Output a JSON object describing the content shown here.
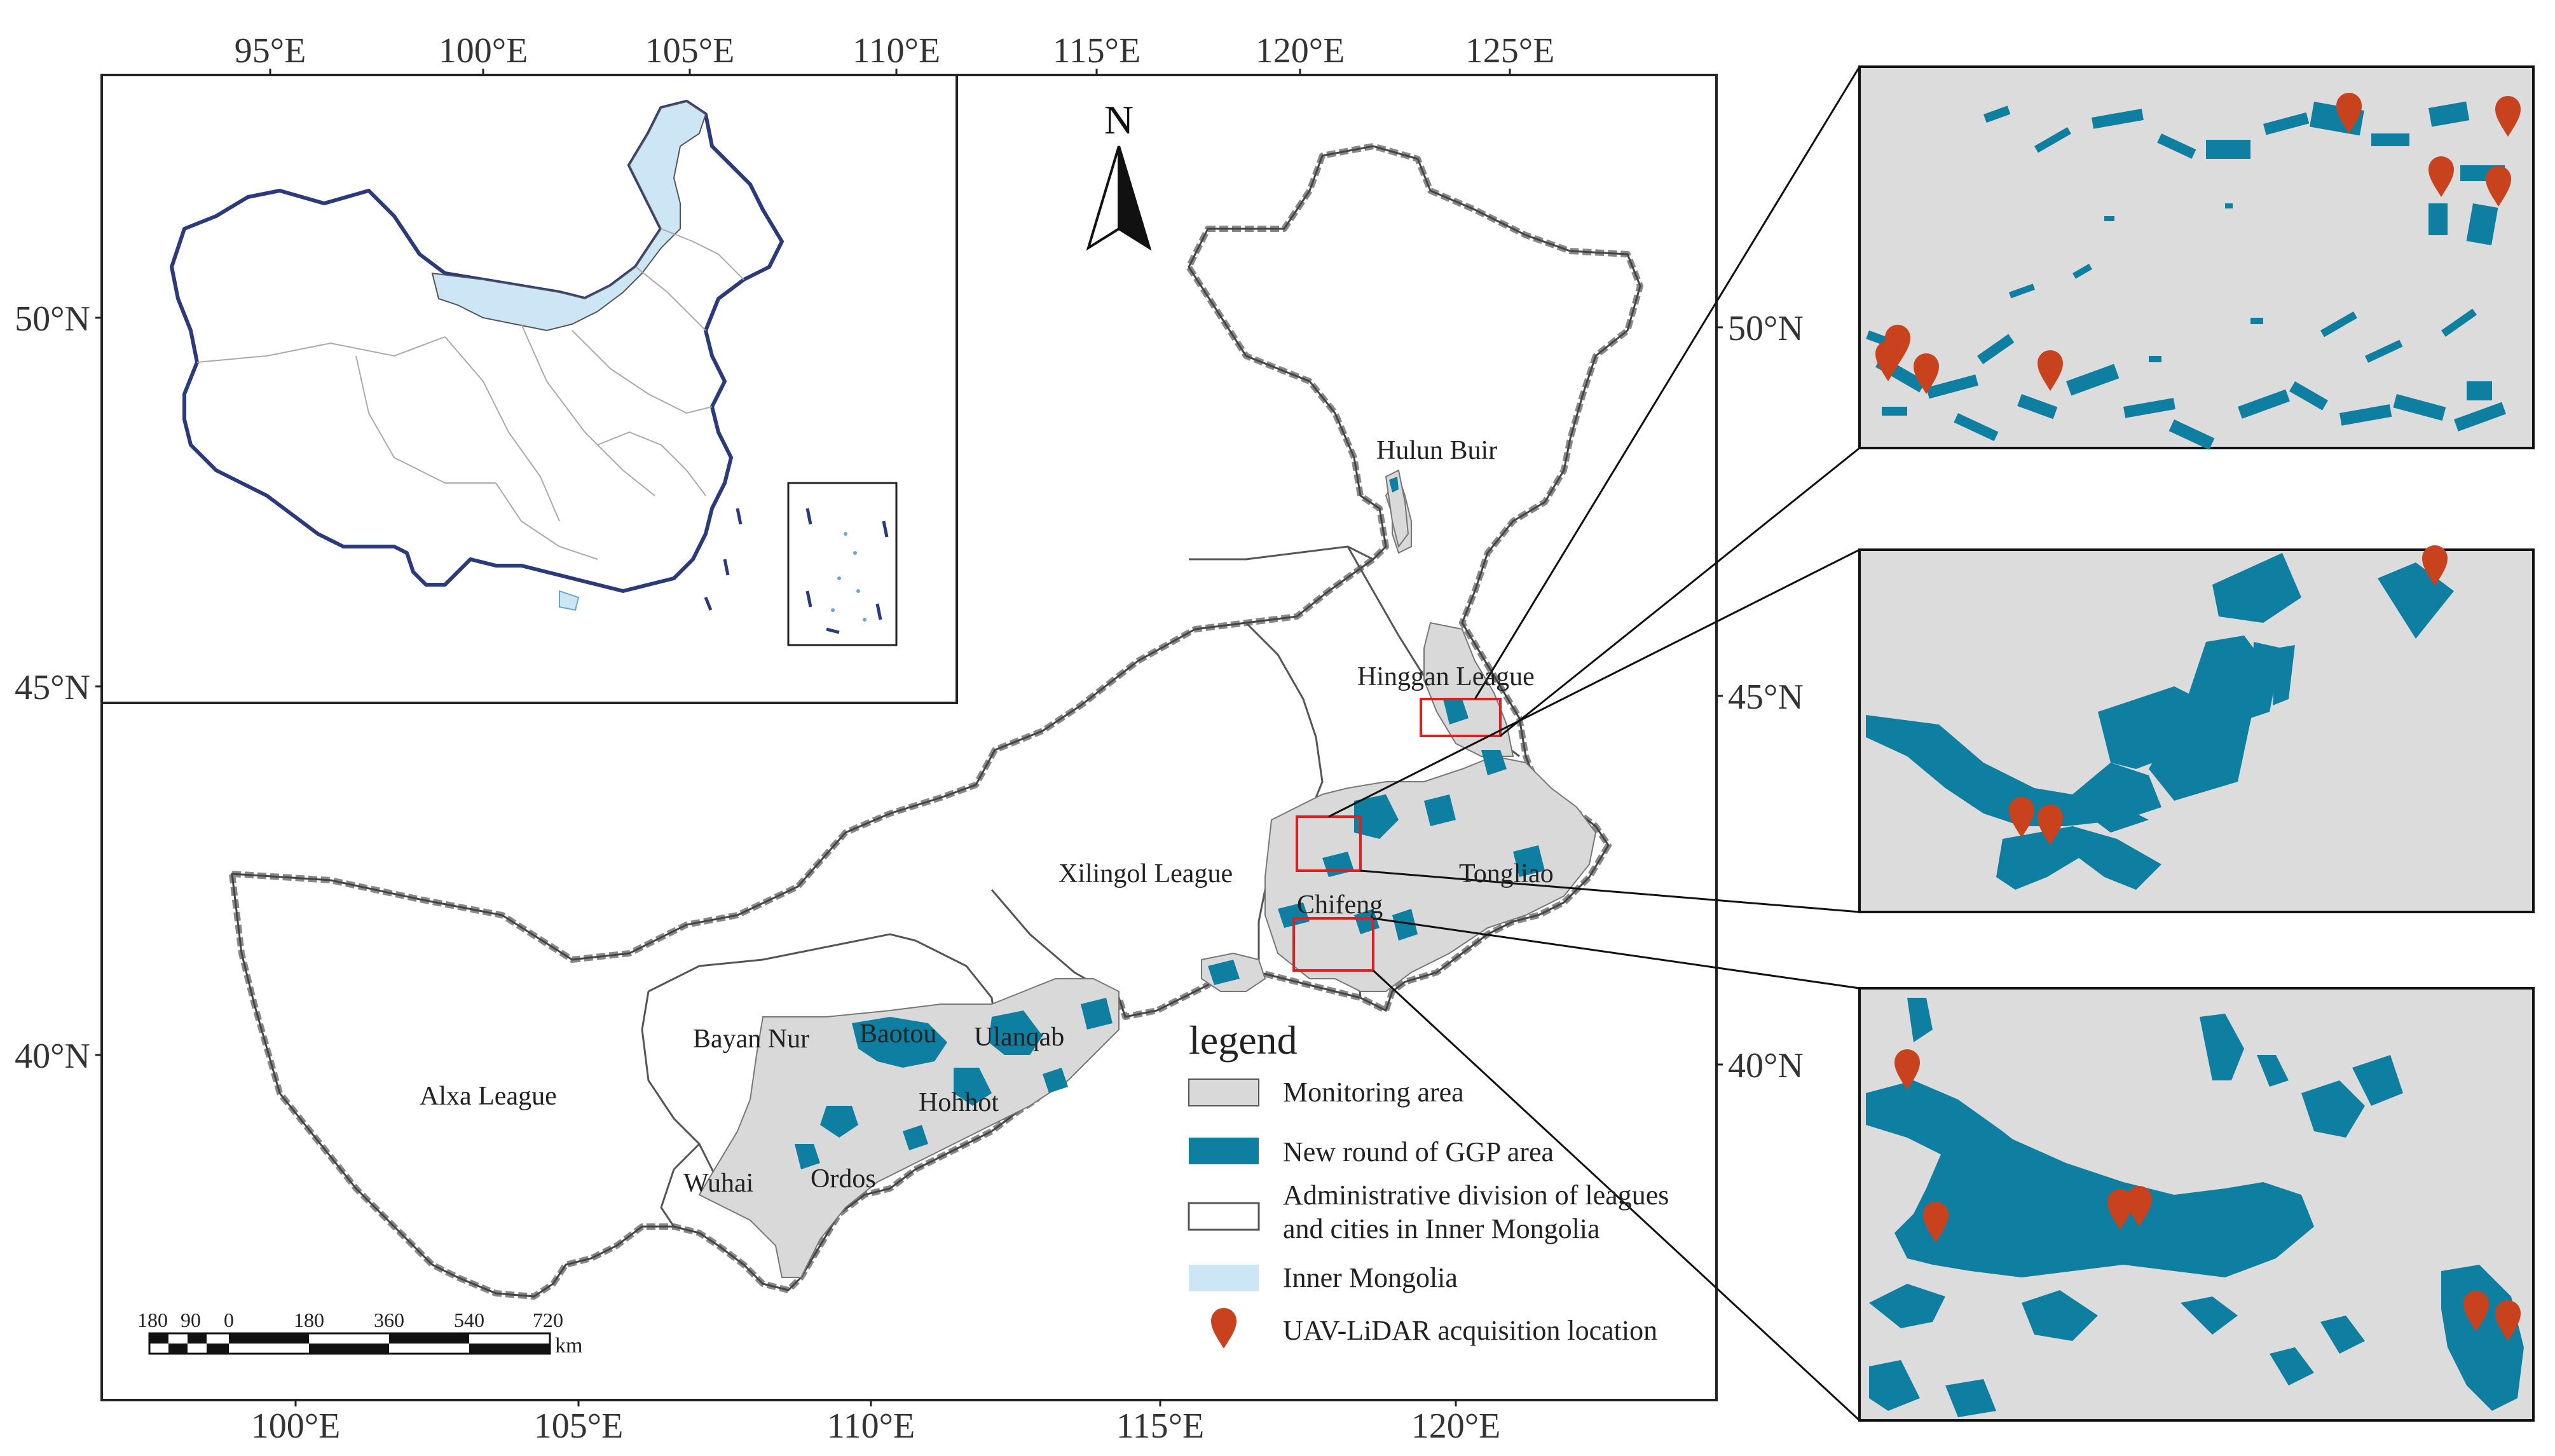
{
  "top_longitude_labels": [
    "95°E",
    "100°E",
    "105°E",
    "110°E",
    "115°E",
    "120°E",
    "125°E"
  ],
  "bottom_longitude_labels": [
    "100°E",
    "105°E",
    "110°E",
    "115°E",
    "120°E"
  ],
  "left_latitude_labels": [
    "50°N",
    "45°N",
    "40°N"
  ],
  "right_latitude_labels": [
    "50°N",
    "45°N",
    "40°N"
  ],
  "north_arrow": {
    "label": "N"
  },
  "place_labels": {
    "hulun_buir": "Hulun Buir",
    "hinggan_league": "Hinggan League",
    "xilingol_league": "Xilingol League",
    "tongliao": "Tongliao",
    "chifeng": "Chifeng",
    "bayan_nur": "Bayan Nur",
    "baotou": "Baotou",
    "ulanqab": "Ulanqab",
    "hohhot": "Hohhot",
    "alxa_league": "Alxa League",
    "wuhai": "Wuhai",
    "ordos": "Ordos"
  },
  "legend": {
    "title": "legend",
    "items": [
      {
        "label": "Monitoring area",
        "symbol": "gray-box",
        "color": "#d9d9d9"
      },
      {
        "label": "New round of GGP area",
        "symbol": "teal-box",
        "color": "#0e7ea1"
      },
      {
        "label_line1": "Administrative division of  leagues",
        "label_line2": "and cities in Inner Mongolia",
        "symbol": "white-box",
        "color": "#ffffff"
      },
      {
        "label": "Inner Mongolia",
        "symbol": "light-blue-box",
        "color": "#cce6f5"
      },
      {
        "label": "UAV-LiDAR acquisition location",
        "symbol": "map-pin-icon",
        "color": "#c8431d"
      }
    ]
  },
  "scale_bar": {
    "ticks": [
      "180",
      "90",
      "0",
      "180",
      "360",
      "540",
      "720"
    ],
    "unit": "km"
  },
  "colors": {
    "monitoring_area": "#d9d9d9",
    "ggp_area": "#0e7ea1",
    "inner_mongolia": "#cce6f5",
    "pin": "#c8431d",
    "highlight_box": "#e02020",
    "boundary": "#555555"
  }
}
